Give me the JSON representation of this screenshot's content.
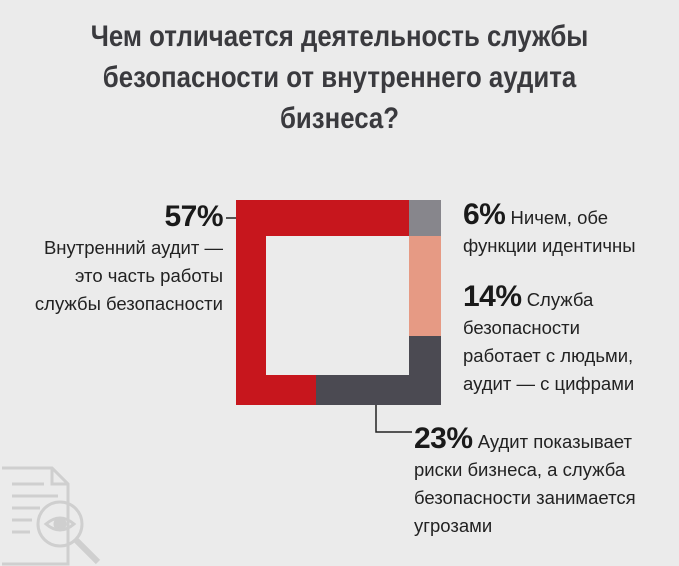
{
  "title_lines": [
    "Чем отличается деятельность службы",
    "безопасности от внутреннего аудита",
    "бизнеса?"
  ],
  "colors": {
    "background": "#ebebeb",
    "same": "#87868c",
    "people_vs_numbers": "#e69a84",
    "risks_vs_threats": "#4b4a52",
    "part_of_security": "#c7161d"
  },
  "chart_data": {
    "type": "pie",
    "style": "square-ring",
    "title": "Чем отличается деятельность службы безопасности от внутреннего аудита бизнеса?",
    "unit": "%",
    "slices": [
      {
        "value": 6,
        "label": "6%",
        "text": [
          "Ничем, обе",
          "функции идентичны"
        ],
        "color": "#87868c"
      },
      {
        "value": 14,
        "label": "14%",
        "text": [
          "Служба",
          "безопасности",
          "работает с людьми,",
          "аудит — с цифрами"
        ],
        "color": "#e69a84"
      },
      {
        "value": 23,
        "label": "23%",
        "text": [
          "Аудит показывает",
          "риски бизнеса, а служба",
          "безопасности занимается",
          "угрозами"
        ],
        "color": "#4b4a52"
      },
      {
        "value": 57,
        "label": "57%",
        "text": [
          "Внутренний аудит —",
          "это часть работы",
          "службы безопасности"
        ],
        "color": "#c7161d"
      }
    ]
  },
  "icon_name": "document-magnifier-icon"
}
